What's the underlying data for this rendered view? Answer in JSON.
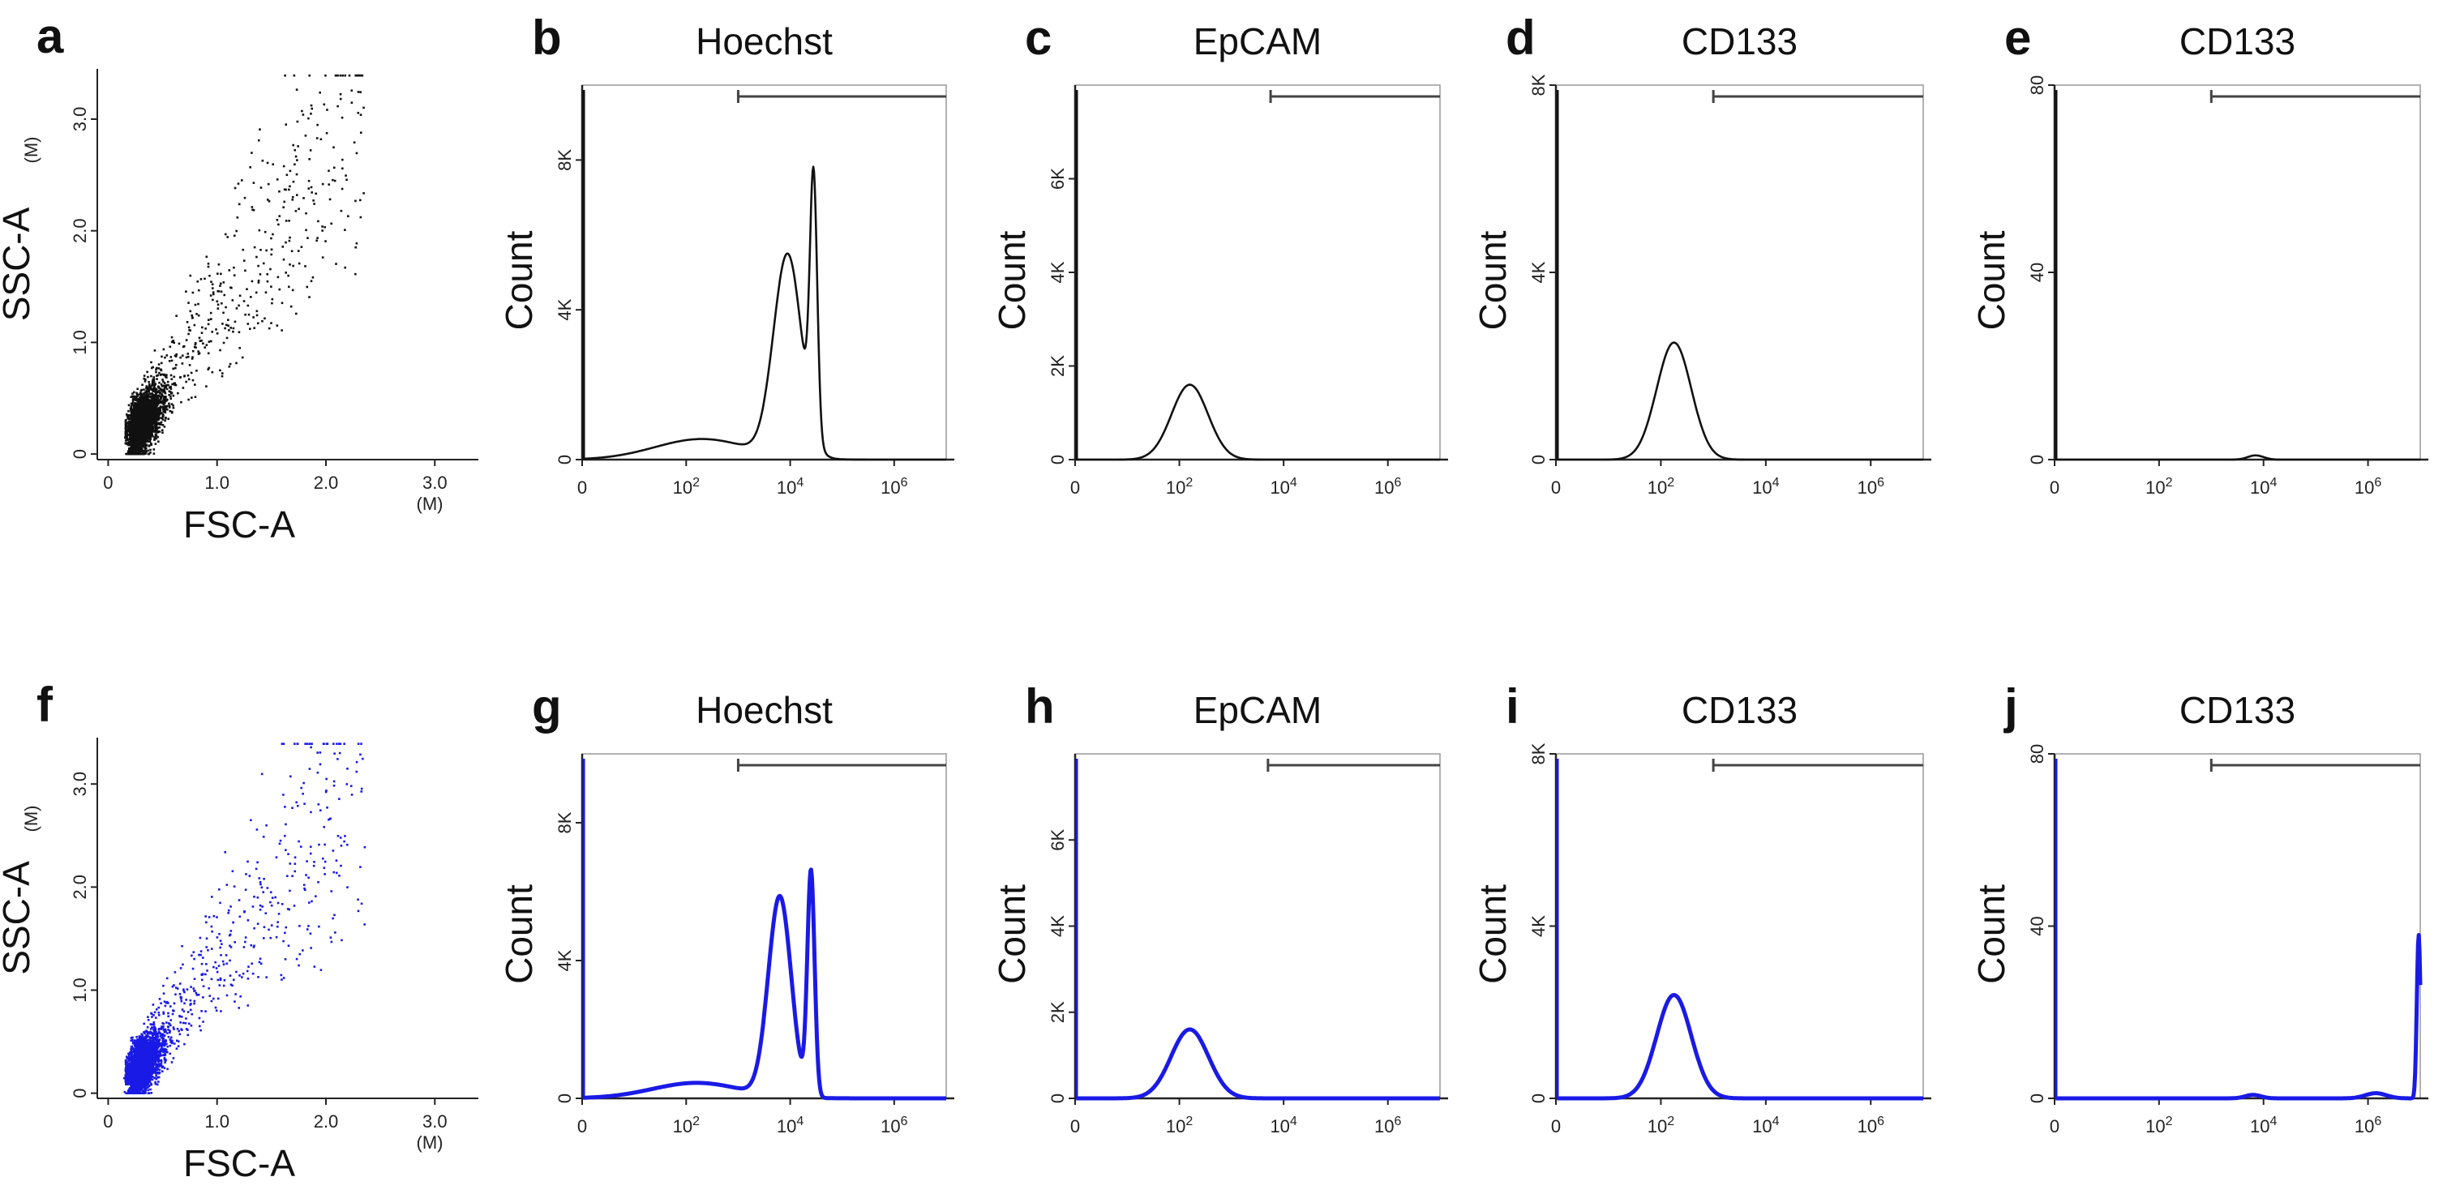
{
  "figure": {
    "colors": {
      "top": "#111111",
      "bottom": "#1a1ae6",
      "frame": "#999999",
      "axis": "#222222"
    }
  },
  "chart_data": [
    {
      "id": "a",
      "type": "scatter",
      "label": "a",
      "title": "",
      "xlabel": "FSC-A",
      "ylabel": "SSC-A",
      "xunit": "(M)",
      "yunit": "(M)",
      "xticks": [
        {
          "v": 0,
          "t": "0"
        },
        {
          "v": 1,
          "t": "1.0"
        },
        {
          "v": 2,
          "t": "2.0"
        },
        {
          "v": 3,
          "t": "3.0"
        }
      ],
      "yticks": [
        {
          "v": 0,
          "t": "0"
        },
        {
          "v": 1,
          "t": "1.0"
        },
        {
          "v": 2,
          "t": "2.0"
        },
        {
          "v": 3,
          "t": "3.0"
        }
      ],
      "xlim": [
        -0.1,
        3.4
      ],
      "ylim": [
        -0.05,
        3.45
      ],
      "series": "top"
    },
    {
      "id": "b",
      "type": "area",
      "label": "b",
      "title": "Hoechst",
      "xlabel": "",
      "ylabel": "Count",
      "xticks": [
        "0",
        "10^2",
        "10^4",
        "10^6"
      ],
      "yticks": [
        {
          "v": 0,
          "t": "0"
        },
        {
          "v": 4,
          "t": "4K"
        },
        {
          "v": 8,
          "t": "8K"
        }
      ],
      "ylim": [
        0,
        10
      ],
      "gate": [
        3.0,
        7.0
      ],
      "peaks": [
        {
          "x": 2.3,
          "h": 0.55,
          "w": 0.9
        },
        {
          "x": 3.95,
          "h": 5.4,
          "w": 0.27
        },
        {
          "x": 4.45,
          "h": 6.8,
          "w": 0.07
        }
      ],
      "series": "top"
    },
    {
      "id": "c",
      "type": "area",
      "label": "c",
      "title": "EpCAM",
      "xlabel": "",
      "ylabel": "Count",
      "xticks": [
        "0",
        "10^2",
        "10^4",
        "10^6"
      ],
      "yticks": [
        {
          "v": 0,
          "t": "0"
        },
        {
          "v": 2,
          "t": "2K"
        },
        {
          "v": 4,
          "t": "4K"
        },
        {
          "v": 6,
          "t": "6K"
        }
      ],
      "ylim": [
        0,
        8
      ],
      "gate": [
        3.75,
        7.0
      ],
      "peaks": [
        {
          "x": 2.2,
          "h": 1.6,
          "w": 0.35
        }
      ],
      "series": "top"
    },
    {
      "id": "d",
      "type": "area",
      "label": "d",
      "title": "CD133",
      "xlabel": "",
      "ylabel": "Count",
      "xticks": [
        "0",
        "10^2",
        "10^4",
        "10^6"
      ],
      "yticks": [
        {
          "v": 0,
          "t": "0"
        },
        {
          "v": 4,
          "t": "4K"
        },
        {
          "v": 8,
          "t": "8K"
        }
      ],
      "ylim": [
        0,
        8
      ],
      "gate": [
        3.0,
        7.0
      ],
      "peaks": [
        {
          "x": 2.25,
          "h": 2.5,
          "w": 0.33
        }
      ],
      "series": "top"
    },
    {
      "id": "e",
      "type": "area",
      "label": "e",
      "title": "CD133",
      "xlabel": "",
      "ylabel": "Count",
      "xticks": [
        "0",
        "10^2",
        "10^4",
        "10^6"
      ],
      "yticks": [
        {
          "v": 0,
          "t": "0"
        },
        {
          "v": 40,
          "t": "40"
        },
        {
          "v": 80,
          "t": "80"
        }
      ],
      "ylim": [
        0,
        80
      ],
      "gate": [
        3.0,
        7.0
      ],
      "peaks": [
        {
          "x": 3.85,
          "h": 0.9,
          "w": 0.15
        }
      ],
      "series": "top"
    },
    {
      "id": "f",
      "type": "scatter",
      "label": "f",
      "title": "",
      "xlabel": "FSC-A",
      "ylabel": "SSC-A",
      "xunit": "(M)",
      "yunit": "(M)",
      "xticks": [
        {
          "v": 0,
          "t": "0"
        },
        {
          "v": 1,
          "t": "1.0"
        },
        {
          "v": 2,
          "t": "2.0"
        },
        {
          "v": 3,
          "t": "3.0"
        }
      ],
      "yticks": [
        {
          "v": 0,
          "t": "0"
        },
        {
          "v": 1,
          "t": "1.0"
        },
        {
          "v": 2,
          "t": "2.0"
        },
        {
          "v": 3,
          "t": "3.0"
        }
      ],
      "xlim": [
        -0.1,
        3.4
      ],
      "ylim": [
        -0.05,
        3.45
      ],
      "series": "bottom"
    },
    {
      "id": "g",
      "type": "area",
      "label": "g",
      "title": "Hoechst",
      "xlabel": "",
      "ylabel": "Count",
      "xticks": [
        "0",
        "10^2",
        "10^4",
        "10^6"
      ],
      "yticks": [
        {
          "v": 0,
          "t": "0"
        },
        {
          "v": 4,
          "t": "4K"
        },
        {
          "v": 8,
          "t": "8K"
        }
      ],
      "ylim": [
        0,
        10
      ],
      "gate": [
        3.0,
        7.0
      ],
      "peaks": [
        {
          "x": 2.2,
          "h": 0.45,
          "w": 0.85
        },
        {
          "x": 3.8,
          "h": 5.8,
          "w": 0.22
        },
        {
          "x": 4.4,
          "h": 6.5,
          "w": 0.07
        }
      ],
      "series": "bottom"
    },
    {
      "id": "h",
      "type": "area",
      "label": "h",
      "title": "EpCAM",
      "xlabel": "",
      "ylabel": "Count",
      "xticks": [
        "0",
        "10^2",
        "10^4",
        "10^6"
      ],
      "yticks": [
        {
          "v": 0,
          "t": "0"
        },
        {
          "v": 2,
          "t": "2K"
        },
        {
          "v": 4,
          "t": "4K"
        },
        {
          "v": 6,
          "t": "6K"
        }
      ],
      "ylim": [
        0,
        8
      ],
      "gate": [
        3.7,
        7.0
      ],
      "peaks": [
        {
          "x": 2.2,
          "h": 1.6,
          "w": 0.36
        }
      ],
      "series": "bottom"
    },
    {
      "id": "i",
      "type": "area",
      "label": "i",
      "title": "CD133",
      "xlabel": "",
      "ylabel": "Count",
      "xticks": [
        "0",
        "10^2",
        "10^4",
        "10^6"
      ],
      "yticks": [
        {
          "v": 0,
          "t": "0"
        },
        {
          "v": 4,
          "t": "4K"
        },
        {
          "v": 8,
          "t": "8K"
        }
      ],
      "ylim": [
        0,
        8
      ],
      "gate": [
        3.0,
        7.0
      ],
      "peaks": [
        {
          "x": 2.25,
          "h": 2.4,
          "w": 0.33
        }
      ],
      "series": "bottom"
    },
    {
      "id": "j",
      "type": "area",
      "label": "j",
      "title": "CD133",
      "xlabel": "",
      "ylabel": "Count",
      "xticks": [
        "0",
        "10^2",
        "10^4",
        "10^6"
      ],
      "yticks": [
        {
          "v": 0,
          "t": "0"
        },
        {
          "v": 40,
          "t": "40"
        },
        {
          "v": 80,
          "t": "80"
        }
      ],
      "ylim": [
        0,
        80
      ],
      "gate": [
        3.0,
        7.0
      ],
      "peaks": [
        {
          "x": 3.8,
          "h": 0.8,
          "w": 0.15
        },
        {
          "x": 6.15,
          "h": 1.2,
          "w": 0.2
        },
        {
          "x": 6.97,
          "h": 38,
          "w": 0.035
        }
      ],
      "series": "bottom"
    }
  ]
}
